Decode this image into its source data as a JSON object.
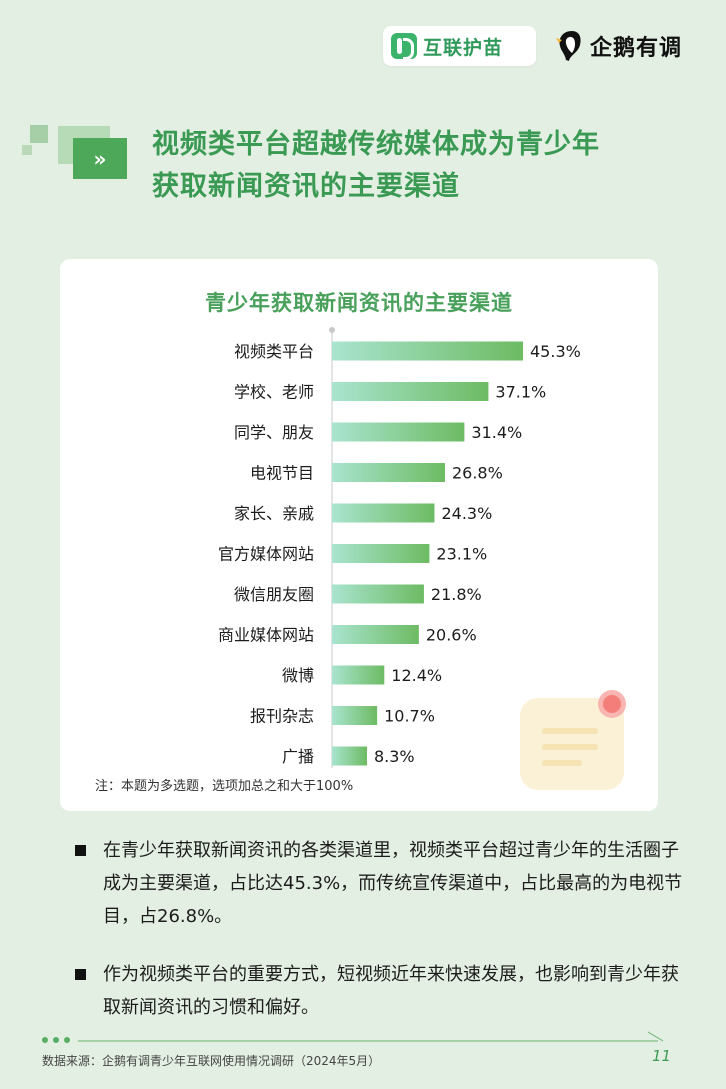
{
  "header": {
    "logo_left_text": "互联护苗",
    "logo_right_text": "企鹅有调"
  },
  "title": {
    "badge": "»",
    "line1": "视频类平台超越传统媒体成为青少年",
    "line2": "获取新闻资讯的主要渠道"
  },
  "chart_data": {
    "type": "bar",
    "orientation": "horizontal",
    "title": "青少年获取新闻资讯的主要渠道",
    "categories": [
      "视频类平台",
      "学校、老师",
      "同学、朋友",
      "电视节目",
      "家长、亲戚",
      "官方媒体网站",
      "微信朋友圈",
      "商业媒体网站",
      "微博",
      "报刊杂志",
      "广播"
    ],
    "values": [
      45.3,
      37.1,
      31.4,
      26.8,
      24.3,
      23.1,
      21.8,
      20.6,
      12.4,
      10.7,
      8.3
    ],
    "value_labels": [
      "45.3%",
      "37.1%",
      "31.4%",
      "26.8%",
      "24.3%",
      "23.1%",
      "21.8%",
      "20.6%",
      "12.4%",
      "10.7%",
      "8.3%"
    ],
    "unit": "%",
    "xlim": [
      0,
      50
    ],
    "grid": false,
    "bar_gradient": [
      "#a9e4cf",
      "#6dbb63"
    ],
    "note": "注：本题为多选题，选项加总之和大于100%"
  },
  "bullets": [
    "在青少年获取新闻资讯的各类渠道里，视频类平台超过青少年的生活圈子成为主要渠道，占比达45.3%，而传统宣传渠道中，占比最高的为电视节目，占26.8%。",
    "作为视频类平台的重要方式，短视频近年来快速发展，也影响到青少年获取新闻资讯的习惯和偏好。"
  ],
  "footer": {
    "source": "数据来源：企鹅有调青少年互联网使用情况调研（2024年5月）",
    "page_number": "11"
  },
  "colors": {
    "background": "#e3efe2",
    "accent": "#3a9a54",
    "card": "#ffffff"
  }
}
